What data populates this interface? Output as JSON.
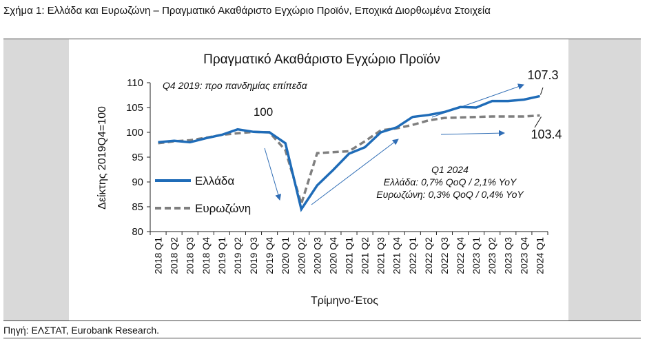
{
  "figure": {
    "title": "Σχήμα 1: Ελλάδα και Ευρωζώνη – Πραγματικό Ακαθάριστο Εγχώριο Προϊόν, Εποχικά Διορθωμένα Στοιχεία",
    "source": "Πηγή: ΕΛΣΤΑΤ, Eurobank Research."
  },
  "chart_data": {
    "type": "line",
    "title": "Πραγματικό Ακαθάριστο Εγχώριο Προϊόν",
    "xlabel": "Τρίμηνο-Έτος",
    "ylabel": "Δείκτης 2019Q4=100",
    "ylim": [
      80,
      110
    ],
    "yticks": [
      80,
      85,
      90,
      95,
      100,
      105,
      110
    ],
    "grid": false,
    "legend_position": "left",
    "categories": [
      "2018 Q1",
      "2018 Q2",
      "2018 Q3",
      "2018 Q4",
      "2019 Q1",
      "2019 Q2",
      "2019 Q3",
      "2019 Q4",
      "2020 Q1",
      "2020 Q2",
      "2020 Q3",
      "2020 Q4",
      "2021 Q1",
      "2021 Q2",
      "2021 Q3",
      "2021 Q4",
      "2022 Q1",
      "2022 Q2",
      "2022 Q3",
      "2022 Q4",
      "2023 Q1",
      "2023 Q2",
      "2023 Q3",
      "2023 Q4",
      "2024 Q1"
    ],
    "series": [
      {
        "name": "Ελλάδα",
        "color": "#1f6cb8",
        "dash": "solid",
        "values": [
          98.0,
          98.3,
          98.0,
          98.8,
          99.5,
          100.6,
          100.1,
          100.0,
          97.8,
          84.5,
          89.3,
          92.4,
          95.7,
          97.0,
          100.0,
          101.0,
          103.1,
          103.5,
          104.1,
          105.1,
          105.0,
          106.3,
          106.3,
          106.6,
          107.3
        ]
      },
      {
        "name": "Ευρωζώνη",
        "color": "#7f7f7f",
        "dash": "dashed",
        "values": [
          97.8,
          98.2,
          98.4,
          98.9,
          99.5,
          99.8,
          100.1,
          100.0,
          96.4,
          85.6,
          95.8,
          96.0,
          96.2,
          98.2,
          100.4,
          100.8,
          101.5,
          102.4,
          102.9,
          103.0,
          103.1,
          103.2,
          103.2,
          103.2,
          103.4
        ]
      }
    ],
    "annotations": {
      "pre_pandemic": "Q4 2019: προ πανδημίας επίπεδα",
      "peak_label": "100",
      "greece_last": "107.3",
      "euro_last": "103.4",
      "q1_title": "Q1 2024",
      "q1_greece": "Ελλάδα: 0,7% QoQ / 2,1% YoY",
      "q1_euro": "Ευρωζώνη: 0,3% QoQ / 0,4% YoY"
    }
  }
}
